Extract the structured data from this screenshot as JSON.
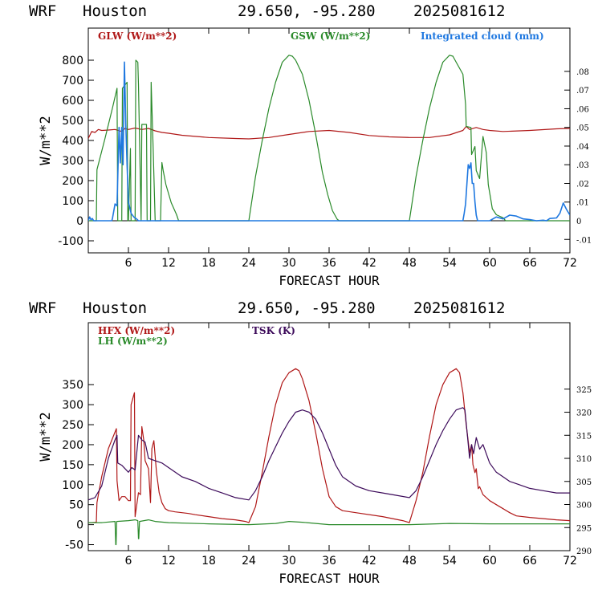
{
  "header": {
    "model": "WRF",
    "location": "Houston",
    "coords": "29.650, -95.280",
    "run": "2025081612"
  },
  "colors": {
    "red": "#b01818",
    "green": "#2a8a2a",
    "blue": "#1f78e0",
    "purple": "#3c0a5a",
    "frame": "#000000"
  },
  "chart_data": [
    {
      "type": "line",
      "header": "top",
      "xlabel": "FORECAST HOUR",
      "ylabel": "W/m**2",
      "xlim": [
        0,
        72
      ],
      "ylim": [
        -160,
        960
      ],
      "y2lim": [
        -0.0172,
        0.1032
      ],
      "xticks": [
        6,
        12,
        18,
        24,
        30,
        36,
        42,
        48,
        54,
        60,
        66,
        72
      ],
      "yticks": [
        -100,
        0,
        100,
        200,
        300,
        400,
        500,
        600,
        700,
        800
      ],
      "y2ticks": [
        -0.01,
        0,
        0.01,
        0.02,
        0.03,
        0.04,
        0.05,
        0.06,
        0.07,
        0.08
      ],
      "y2tick_labels": [
        "-.01",
        "0",
        ".01",
        ".02",
        ".03",
        ".04",
        ".05",
        ".06",
        ".07",
        ".08"
      ],
      "zero_line": true,
      "series": [
        {
          "name": "GLW (W/m**2)",
          "axis": "left",
          "color": "red",
          "legend_x": 0.02,
          "x": [
            0,
            0.5,
            1,
            1.5,
            2,
            3,
            4,
            5,
            5.5,
            6,
            7,
            8,
            9,
            10,
            11,
            12,
            14,
            18,
            22,
            24,
            27,
            30,
            33,
            36,
            39,
            42,
            45,
            48,
            51,
            54,
            56,
            56.5,
            57,
            58,
            59,
            60,
            62,
            66,
            70,
            72
          ],
          "y": [
            410,
            445,
            440,
            455,
            450,
            452,
            455,
            445,
            460,
            455,
            462,
            455,
            460,
            448,
            440,
            436,
            426,
            415,
            410,
            408,
            415,
            430,
            445,
            450,
            440,
            425,
            418,
            415,
            415,
            428,
            450,
            470,
            455,
            465,
            455,
            450,
            445,
            450,
            458,
            460
          ]
        },
        {
          "name": "GSW (W/m**2)",
          "axis": "left",
          "color": "green",
          "legend_x": 0.42,
          "x": [
            0,
            1.2,
            1.3,
            2.5,
            3.6,
            4.3,
            4.4,
            5.0,
            5.1,
            5.8,
            5.9,
            6.0,
            6.3,
            6.4,
            7.0,
            7.1,
            7.4,
            7.5,
            7.9,
            8.0,
            8.7,
            8.8,
            9.3,
            9.4,
            9.7,
            10.0,
            10.8,
            11.0,
            11.2,
            11.6,
            12.4,
            13.2,
            13.5,
            24,
            25,
            26,
            27,
            28,
            29,
            30,
            30.5,
            31,
            32,
            33,
            34,
            35,
            35.8,
            36.5,
            37.2,
            37.5,
            48,
            49,
            50,
            51,
            52,
            53,
            54,
            54.5,
            55,
            56,
            56.4,
            56.5,
            57.2,
            57.3,
            57.8,
            58,
            58.5,
            59,
            59.5,
            59.8,
            60.2,
            60.4,
            61,
            62,
            62.4,
            72
          ],
          "y": [
            0,
            0,
            255,
            410,
            560,
            660,
            0,
            0,
            660,
            690,
            0,
            0,
            360,
            0,
            0,
            800,
            790,
            680,
            0,
            480,
            480,
            0,
            0,
            690,
            360,
            0,
            0,
            290,
            250,
            180,
            90,
            30,
            0,
            0,
            220,
            400,
            560,
            690,
            790,
            825,
            820,
            800,
            730,
            600,
            430,
            240,
            130,
            50,
            8,
            0,
            0,
            220,
            400,
            560,
            690,
            790,
            825,
            820,
            790,
            730,
            580,
            470,
            465,
            330,
            370,
            250,
            210,
            420,
            340,
            180,
            100,
            60,
            30,
            15,
            0,
            0
          ]
        },
        {
          "name": "Integrated cloud (mm)",
          "axis": "right",
          "color": "blue",
          "legend_x": 0.69,
          "x": [
            0,
            0.2,
            0.4,
            0.6,
            0.8,
            3.5,
            3.6,
            4.0,
            4.3,
            4.6,
            4.8,
            5.0,
            5.2,
            5.4,
            5.6,
            5.8,
            6.0,
            6.4,
            6.8,
            7.2,
            7.5,
            56.0,
            56.2,
            56.4,
            56.6,
            56.8,
            57.0,
            57.2,
            57.4,
            57.6,
            57.8,
            58.0,
            58.2,
            60.0,
            61.0,
            62.0,
            63.0,
            64.0,
            65.0,
            66.0,
            67.0,
            68.0,
            68.5,
            69.0,
            70.0,
            70.5,
            71.0,
            71.5,
            72.0
          ],
          "y": [
            0,
            0.002,
            0.0005,
            0.0012,
            0,
            0,
            0.001,
            0.009,
            0.008,
            0.05,
            0.031,
            0.05,
            0.03,
            0.085,
            0.052,
            0.03,
            0.01,
            0.004,
            0.002,
            0.001,
            0,
            0,
            0.004,
            0.009,
            0.02,
            0.03,
            0.028,
            0.031,
            0.02,
            0.02,
            0.01,
            0.003,
            0,
            0,
            0.002,
            0.001,
            0.003,
            0.0025,
            0.001,
            0.0006,
            0,
            0.0003,
            0,
            0.0012,
            0.0015,
            0.004,
            0.0095,
            0.006,
            0.003
          ]
        }
      ]
    },
    {
      "type": "line",
      "header": "bottom",
      "xlabel": "FORECAST HOUR",
      "ylabel": "W/m**2",
      "xlim": [
        0,
        72
      ],
      "ylim": [
        -65,
        505
      ],
      "y2lim": [
        290,
        339.4
      ],
      "xticks": [
        6,
        12,
        18,
        24,
        30,
        36,
        42,
        48,
        54,
        60,
        66,
        72
      ],
      "yticks": [
        -50,
        0,
        50,
        100,
        150,
        200,
        250,
        300,
        350
      ],
      "y2ticks": [
        290,
        295,
        300,
        305,
        310,
        315,
        320,
        325
      ],
      "y2tick_labels": [
        "290",
        "295",
        "300",
        "305",
        "310",
        "315",
        "320",
        "325"
      ],
      "zero_line": false,
      "series": [
        {
          "name": "HFX (W/m**2)",
          "axis": "left",
          "color": "red",
          "legend_x": 0.02,
          "legend_row": 0,
          "x": [
            0,
            0.5,
            1.2,
            1.3,
            2,
            3,
            4.2,
            4.3,
            4.6,
            5,
            5.5,
            6,
            6.3,
            6.4,
            6.9,
            7,
            7.5,
            7.8,
            8.0,
            8.3,
            8.5,
            9,
            9.3,
            9.5,
            9.8,
            10.2,
            10.6,
            11,
            11.5,
            12,
            13,
            14,
            15,
            16,
            18,
            20,
            22,
            23.5,
            24,
            25,
            26,
            27,
            28,
            29,
            30,
            31,
            31.5,
            32,
            33,
            34,
            35,
            36,
            37,
            38,
            40,
            44,
            47,
            48,
            49,
            50,
            51,
            52,
            53,
            54,
            55,
            55.5,
            56,
            56.5,
            57,
            57.3,
            57.5,
            57.8,
            58,
            58.3,
            58.5,
            59,
            60,
            61,
            62,
            63,
            64,
            66,
            68,
            70,
            72
          ],
          "y": [
            5,
            5,
            6,
            55,
            120,
            190,
            240,
            110,
            60,
            70,
            70,
            60,
            60,
            300,
            330,
            20,
            80,
            75,
            245,
            210,
            160,
            140,
            55,
            190,
            210,
            130,
            80,
            55,
            40,
            35,
            32,
            30,
            28,
            25,
            20,
            15,
            12,
            8,
            5,
            45,
            130,
            220,
            300,
            355,
            380,
            390,
            385,
            365,
            310,
            230,
            140,
            70,
            45,
            35,
            30,
            20,
            10,
            5,
            60,
            130,
            220,
            300,
            350,
            380,
            390,
            380,
            330,
            250,
            180,
            200,
            150,
            130,
            140,
            90,
            95,
            75,
            60,
            50,
            40,
            30,
            22,
            18,
            15,
            12,
            10
          ]
        },
        {
          "name": "LH  (W/m**2)",
          "axis": "left",
          "color": "green",
          "legend_x": 0.02,
          "legend_row": 1,
          "x": [
            0,
            2,
            4.0,
            4.1,
            4.15,
            4.25,
            6,
            7,
            7.4,
            7.5,
            7.55,
            7.65,
            9,
            10,
            12,
            18,
            24,
            28,
            30,
            32,
            36,
            48,
            54,
            60,
            66,
            72
          ],
          "y": [
            5,
            5,
            8,
            -50,
            -50,
            8,
            10,
            12,
            10,
            -35,
            -35,
            8,
            12,
            8,
            5,
            2,
            0,
            3,
            8,
            6,
            0,
            0,
            3,
            2,
            2,
            2
          ]
        },
        {
          "name": "TSK (K)",
          "axis": "right",
          "color": "purple",
          "legend_x": 0.34,
          "legend_row": 0,
          "x": [
            0,
            1,
            2,
            3,
            4,
            4.3,
            4.4,
            5,
            6,
            6.5,
            7,
            7.5,
            8,
            8.5,
            9,
            10,
            11,
            12,
            14,
            16,
            18,
            20,
            22,
            24,
            25,
            26,
            27,
            28,
            29,
            30,
            31,
            32,
            33,
            34,
            35,
            36,
            37,
            38,
            40,
            42,
            44,
            46,
            48,
            49,
            50,
            51,
            52,
            53,
            54,
            55,
            56,
            56.3,
            56.6,
            57,
            57.3,
            57.6,
            58,
            58.5,
            59,
            60,
            61,
            62,
            63,
            64,
            66,
            68,
            70,
            72
          ],
          "y": [
            301,
            301.5,
            304,
            310,
            314,
            315,
            309,
            308.5,
            307,
            308,
            307.5,
            315,
            314,
            313.5,
            310,
            309.5,
            309,
            308,
            306,
            305,
            303.5,
            302.5,
            301.5,
            301,
            303,
            306,
            309.5,
            312.5,
            315.5,
            318,
            320,
            320.5,
            320,
            318.5,
            315.5,
            312,
            308.5,
            306,
            304,
            303,
            302.5,
            302,
            301.5,
            303,
            306,
            309.5,
            313,
            316,
            318.5,
            320.5,
            321,
            320.5,
            316,
            310,
            313,
            311,
            314.5,
            312,
            313,
            309,
            307,
            306,
            305,
            304.5,
            303.5,
            303,
            302.5,
            302.5
          ]
        }
      ]
    }
  ]
}
